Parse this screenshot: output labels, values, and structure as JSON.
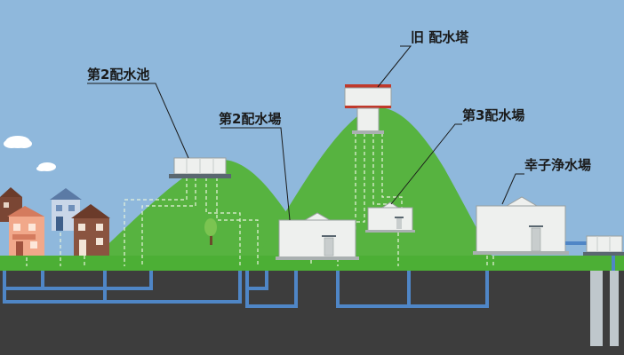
{
  "labels": {
    "reservoir2": "第2配水池",
    "old_tower": "旧 配水塔",
    "station2": "第2配水場",
    "station3": "第3配水場",
    "kouzu_plant": "幸子浄水場"
  },
  "colors": {
    "sky": "#8fb8dc",
    "hill": "#57b340",
    "ground_grass": "#4caf35",
    "underground": "#3d3d3d",
    "pipe": "#4f86c6",
    "building": "#eef0ee",
    "tower_band": "#c0392b",
    "leader_line": "#1a1a1a"
  }
}
